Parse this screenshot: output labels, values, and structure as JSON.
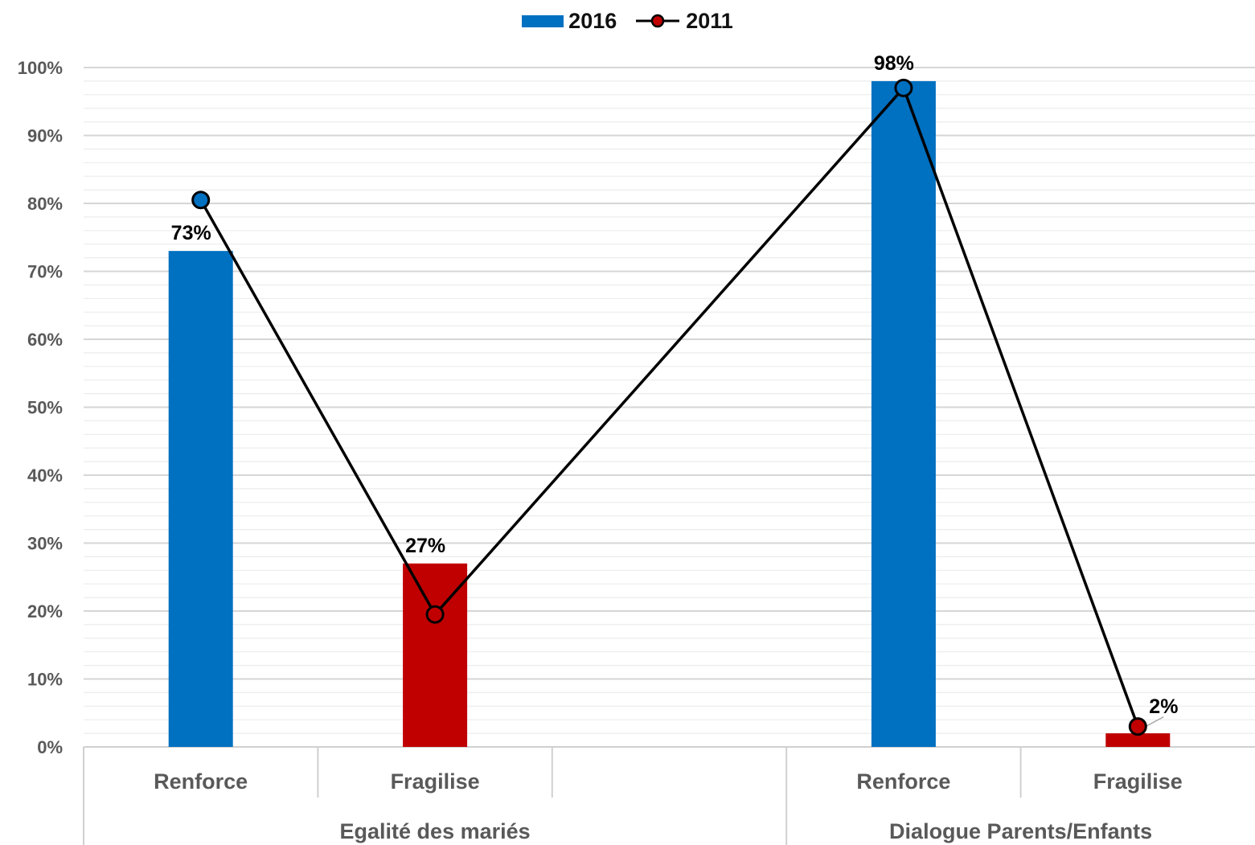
{
  "chart_data": {
    "type": "bar",
    "title": "",
    "xlabel": "",
    "ylabel": "",
    "ylim": [
      0,
      100
    ],
    "y_ticks": [
      "0%",
      "10%",
      "20%",
      "30%",
      "40%",
      "50%",
      "60%",
      "70%",
      "80%",
      "90%",
      "100%"
    ],
    "grid": "horizontal, major and minor",
    "legend_position": "top-center",
    "groups": [
      "Egalité des mariés",
      "Dialogue Parents/Enfants"
    ],
    "categories": [
      "Renforce",
      "Fragilise",
      "",
      "Renforce",
      "Fragilise"
    ],
    "category_group": [
      0,
      0,
      0,
      1,
      1
    ],
    "series": [
      {
        "name": "2016",
        "kind": "bar",
        "values": [
          73,
          27,
          null,
          98,
          2
        ],
        "labels": [
          "73%",
          "27%",
          "",
          "98%",
          "2%"
        ],
        "colors": [
          "#0070C0",
          "#C00000",
          "",
          "#0070C0",
          "#C00000"
        ]
      },
      {
        "name": "2011",
        "kind": "line",
        "color": "#000000",
        "values": [
          80.5,
          19.5,
          null,
          97,
          3
        ],
        "marker_colors": [
          "#0070C0",
          "#C00000",
          "",
          "#0070C0",
          "#C00000"
        ]
      }
    ],
    "legend_colors": {
      "2016": "#0070C0",
      "2011_marker": "#C00000"
    }
  }
}
